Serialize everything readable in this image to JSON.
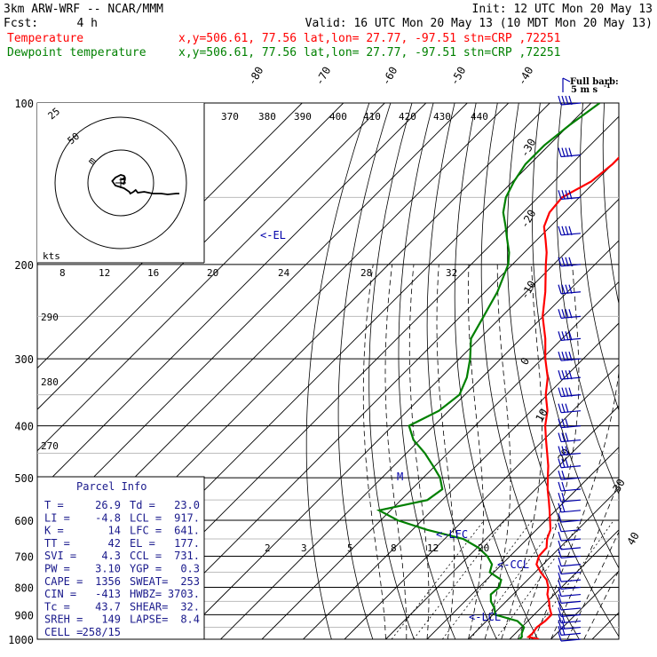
{
  "header": {
    "model": "3km ARW-WRF -- NCAR/MMM",
    "init": "Init: 12 UTC Mon 20 May 13",
    "fcst_label": "Fcst:",
    "fcst_value": "4 h",
    "valid": "Valid: 16 UTC Mon 20 May 13 (10 MDT Mon 20 May 13)",
    "temp_label": "Temperature",
    "temp_info": "x,y=506.61, 77.56   lat,lon= 27.77, -97.51   stn=CRP ,72251",
    "dew_label": "Dewpoint temperature",
    "dew_info": "x,y=506.61, 77.56   lat,lon= 27.77, -97.51   stn=CRP ,72251"
  },
  "colors": {
    "temperature": "#ff0000",
    "dewpoint": "#008000",
    "annotations": "#0000aa",
    "parcel_box": "#1a1a8c"
  },
  "barb_legend": {
    "line1": "Full barb:",
    "line2": "5 m s",
    "superscript": "-1"
  },
  "hodograph": {
    "units": "kts",
    "ring_labels": [
      "25",
      "50"
    ],
    "series_label": "m",
    "points": [
      [
        0,
        0
      ],
      [
        3,
        1
      ],
      [
        4,
        -4
      ],
      [
        1,
        -4
      ],
      [
        4,
        -6
      ],
      [
        3,
        -8
      ],
      [
        0,
        -9
      ],
      [
        -5,
        -6
      ],
      [
        -8,
        -2
      ],
      [
        -5,
        3
      ],
      [
        3,
        6
      ],
      [
        8,
        10
      ],
      [
        9,
        12
      ],
      [
        12,
        10
      ],
      [
        14,
        8
      ],
      [
        16,
        11
      ],
      [
        22,
        10
      ],
      [
        30,
        12
      ],
      [
        38,
        12
      ],
      [
        44,
        13
      ],
      [
        52,
        12
      ],
      [
        55,
        12
      ]
    ]
  },
  "annotations": {
    "el": "<-EL",
    "lfc": "<-LFC",
    "ccl": "<-CCL",
    "lcl": "<-LCL",
    "m": "M"
  },
  "parcel_info": {
    "title": "Parcel Info",
    "rows": [
      [
        "T   =",
        "26.9",
        "Td =",
        "23.0"
      ],
      [
        "LI  =",
        "-4.8",
        "LCL =",
        "917."
      ],
      [
        "K   =",
        "14",
        "LFC =",
        "641."
      ],
      [
        "TT  =",
        "42",
        "EL  =",
        "177."
      ],
      [
        "SVI =",
        "4.3",
        "CCL =",
        "731."
      ],
      [
        "PW  =",
        "3.10",
        "YGP =",
        "0.3"
      ],
      [
        "CAPE =",
        "1356",
        "SWEAT=",
        "253"
      ],
      [
        "CIN  =",
        "-413",
        "HWBZ=",
        "3703."
      ],
      [
        "Tc   =",
        "43.7",
        "SHEAR=",
        "32."
      ],
      [
        "SREH =",
        "149",
        "LAPSE=",
        "8.4"
      ],
      [
        "CELL =",
        "258/15",
        "",
        ""
      ]
    ]
  },
  "chart_data": {
    "type": "line",
    "diagram": "skew-T log-P",
    "y_axis": {
      "scale": "log",
      "range": [
        1000,
        100
      ],
      "tick_labels": [
        100,
        200,
        300,
        400,
        500,
        600,
        700,
        800,
        900,
        1000
      ]
    },
    "isotherm_labels": [
      -80,
      -70,
      -60,
      -50,
      -40,
      -30,
      -20,
      -10,
      0,
      10,
      20,
      30,
      40
    ],
    "theta_labels": [
      270,
      280,
      290,
      370,
      380,
      390,
      400,
      410,
      420,
      430,
      440
    ],
    "theta_e_labels": [
      8,
      12,
      16,
      20,
      24,
      28,
      32
    ],
    "mixing_ratio_labels": [
      2,
      3,
      5,
      8,
      12,
      20
    ],
    "series": [
      {
        "name": "Temperature",
        "pressure": [
          1000,
          990,
          975,
          950,
          925,
          900,
          875,
          850,
          825,
          800,
          775,
          750,
          725,
          700,
          675,
          650,
          625,
          600,
          575,
          550,
          525,
          500,
          475,
          450,
          425,
          400,
          375,
          350,
          325,
          300,
          275,
          250,
          225,
          200,
          190,
          180,
          170,
          160,
          150,
          140,
          130,
          120,
          110,
          100
        ],
        "temp": [
          27.1,
          24.0,
          24.1,
          23.7,
          24.2,
          24.2,
          22.2,
          20.4,
          18.3,
          16.8,
          14.6,
          11.3,
          8.4,
          7.0,
          6.8,
          4.8,
          3.4,
          1.0,
          -1.5,
          -4.2,
          -7.1,
          -9.8,
          -12.6,
          -15.9,
          -19.4,
          -23.0,
          -26.1,
          -30.4,
          -34.1,
          -39.2,
          -44.1,
          -50.1,
          -55.4,
          -61.9,
          -64.6,
          -67.9,
          -71.5,
          -73.6,
          -74.2,
          -71.0,
          -70.0,
          -70.1,
          -67.8,
          -66.2
        ]
      },
      {
        "name": "Dewpoint temperature",
        "pressure": [
          1000,
          990,
          975,
          950,
          925,
          900,
          875,
          850,
          825,
          800,
          775,
          750,
          725,
          700,
          675,
          650,
          625,
          600,
          575,
          550,
          525,
          500,
          475,
          450,
          425,
          400,
          375,
          350,
          325,
          300,
          275,
          250,
          225,
          200,
          190,
          180,
          170,
          160,
          150,
          140,
          130,
          120,
          110,
          100
        ],
        "temp": [
          22.3,
          22.4,
          21.5,
          20.6,
          17.5,
          10.6,
          8.8,
          6.3,
          4.6,
          4.9,
          3.6,
          -1.0,
          -2.4,
          -5.5,
          -9.7,
          -15.5,
          -26.5,
          -35.9,
          -42.8,
          -33.6,
          -32.6,
          -35.9,
          -40.5,
          -45.5,
          -51.5,
          -56.0,
          -52.4,
          -51.3,
          -53.7,
          -57.4,
          -62.1,
          -64.4,
          -67.0,
          -71.0,
          -73.7,
          -77.2,
          -80.8,
          -84.8,
          -87.8,
          -89.7,
          -91.1,
          -91.1,
          -89.9,
          -87.9
        ]
      }
    ],
    "wind_barbs": {
      "units": "m s-1",
      "pressure": [
        1000,
        975,
        950,
        925,
        900,
        875,
        850,
        825,
        800,
        775,
        750,
        725,
        700,
        675,
        650,
        625,
        600,
        575,
        550,
        525,
        500,
        475,
        450,
        425,
        400,
        375,
        350,
        325,
        300,
        275,
        250,
        225,
        200,
        175,
        150,
        125,
        100
      ],
      "speed": [
        6,
        8,
        9,
        8,
        7,
        6,
        5,
        3,
        4,
        4,
        5,
        5,
        5,
        5,
        5,
        5,
        6,
        8,
        10,
        11,
        12,
        13,
        14,
        15,
        16,
        17,
        18,
        19,
        20,
        20,
        21,
        22,
        22,
        21,
        22,
        21,
        19
      ]
    }
  }
}
